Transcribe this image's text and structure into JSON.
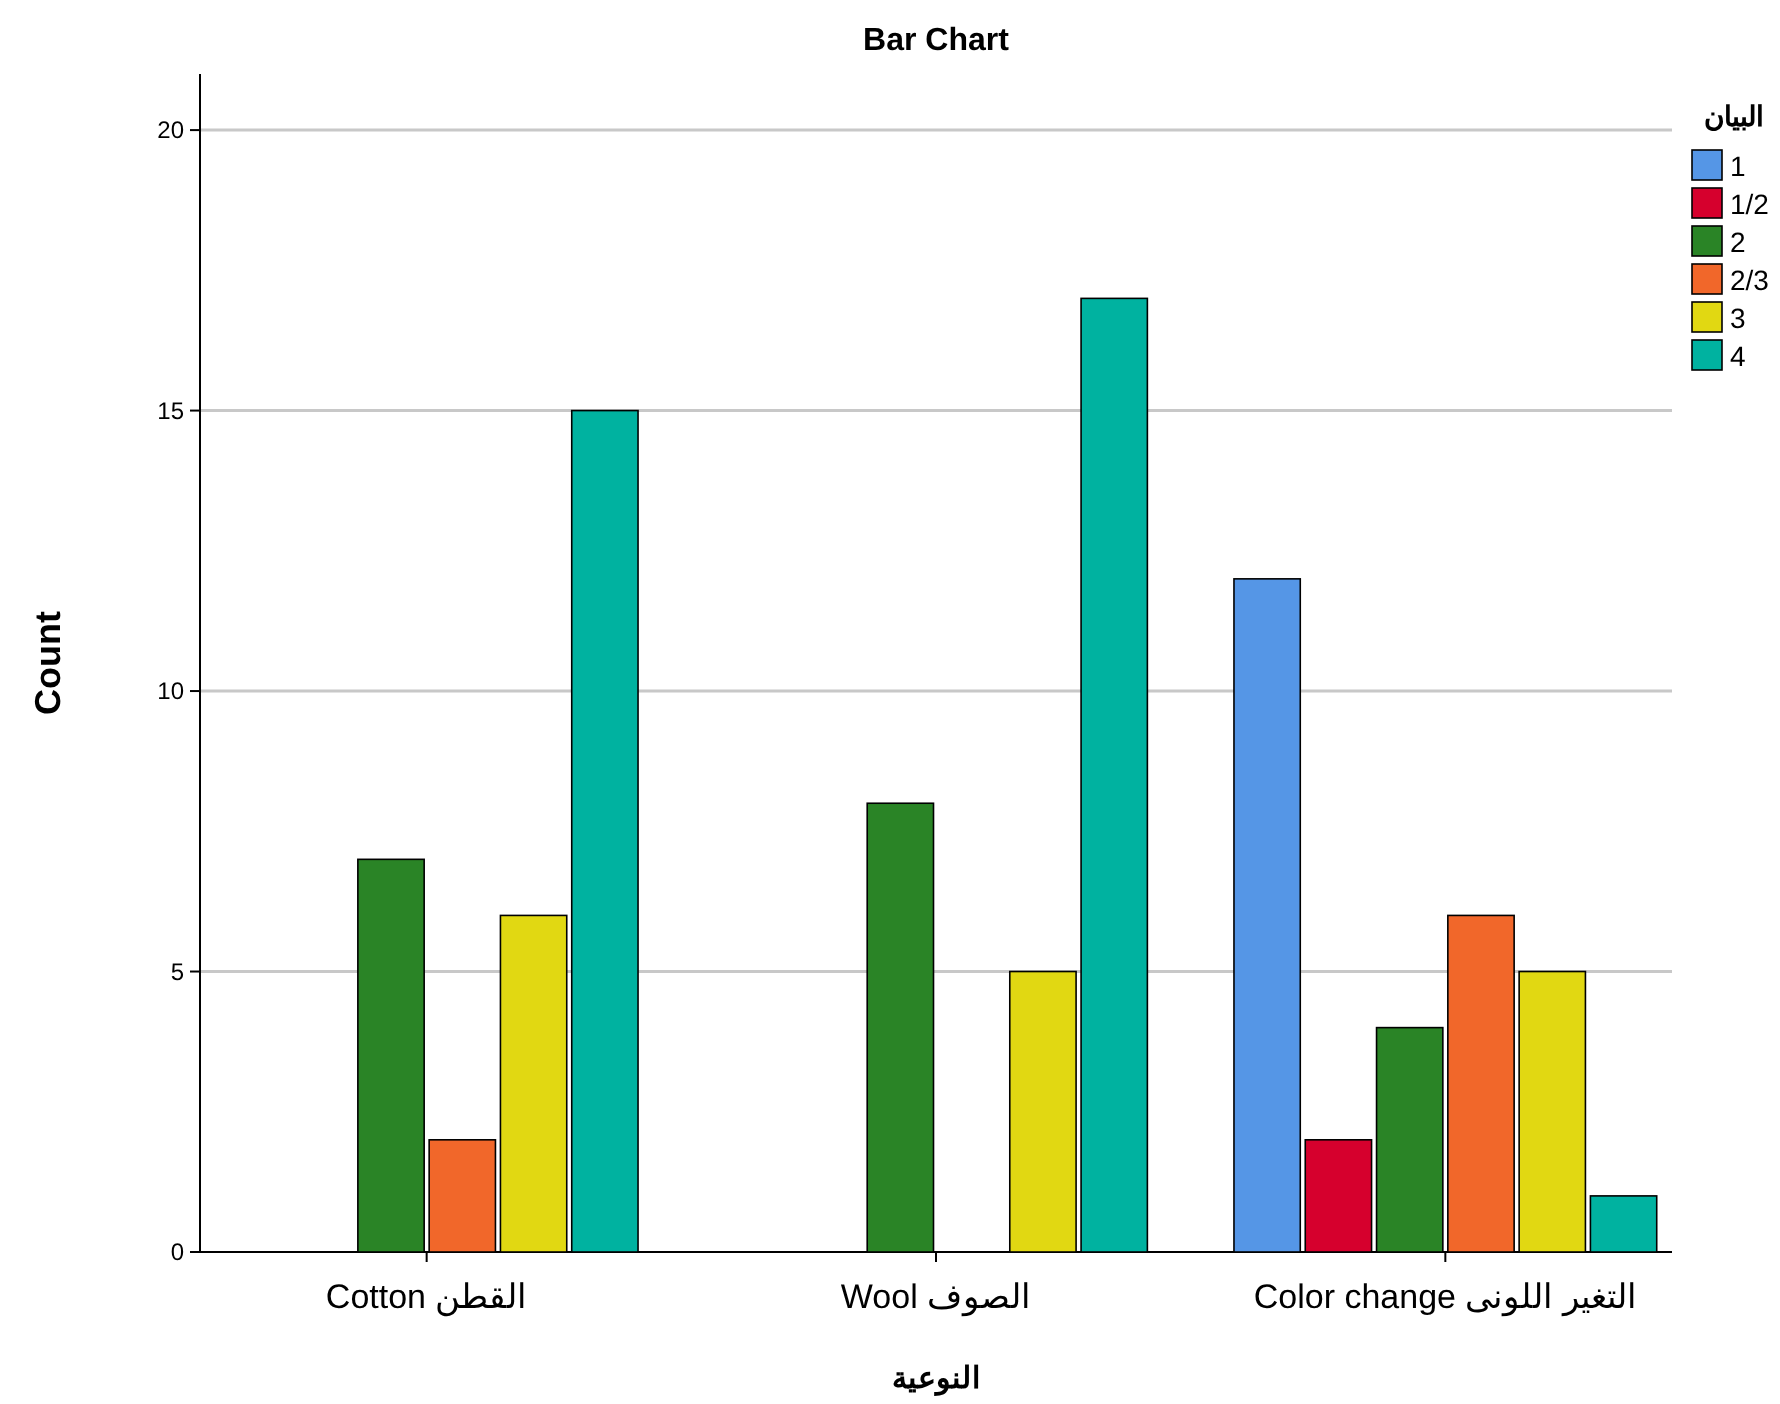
{
  "chart_data": {
    "type": "bar",
    "title": "Bar Chart",
    "xlabel": "النوعية",
    "ylabel": "Count",
    "legend_title": "البيان",
    "categories": [
      "Cotton القطن",
      "Wool الصوف",
      "Color change التغير اللونى"
    ],
    "series": [
      {
        "name": "1",
        "color": "#5596e6",
        "values": [
          null,
          null,
          12
        ]
      },
      {
        "name": "1/2",
        "color": "#d6002d",
        "values": [
          null,
          null,
          2
        ]
      },
      {
        "name": "2",
        "color": "#2a8426",
        "values": [
          7,
          8,
          4
        ]
      },
      {
        "name": "2/3",
        "color": "#f1672a",
        "values": [
          2,
          null,
          6
        ]
      },
      {
        "name": "3",
        "color": "#e1d812",
        "values": [
          6,
          5,
          5
        ]
      },
      {
        "name": "4",
        "color": "#00b2a0",
        "values": [
          15,
          17,
          1
        ]
      }
    ],
    "ylim": [
      0,
      21
    ],
    "yticks": [
      0,
      5,
      10,
      15,
      20
    ],
    "grid": "y",
    "legend": "top right"
  }
}
